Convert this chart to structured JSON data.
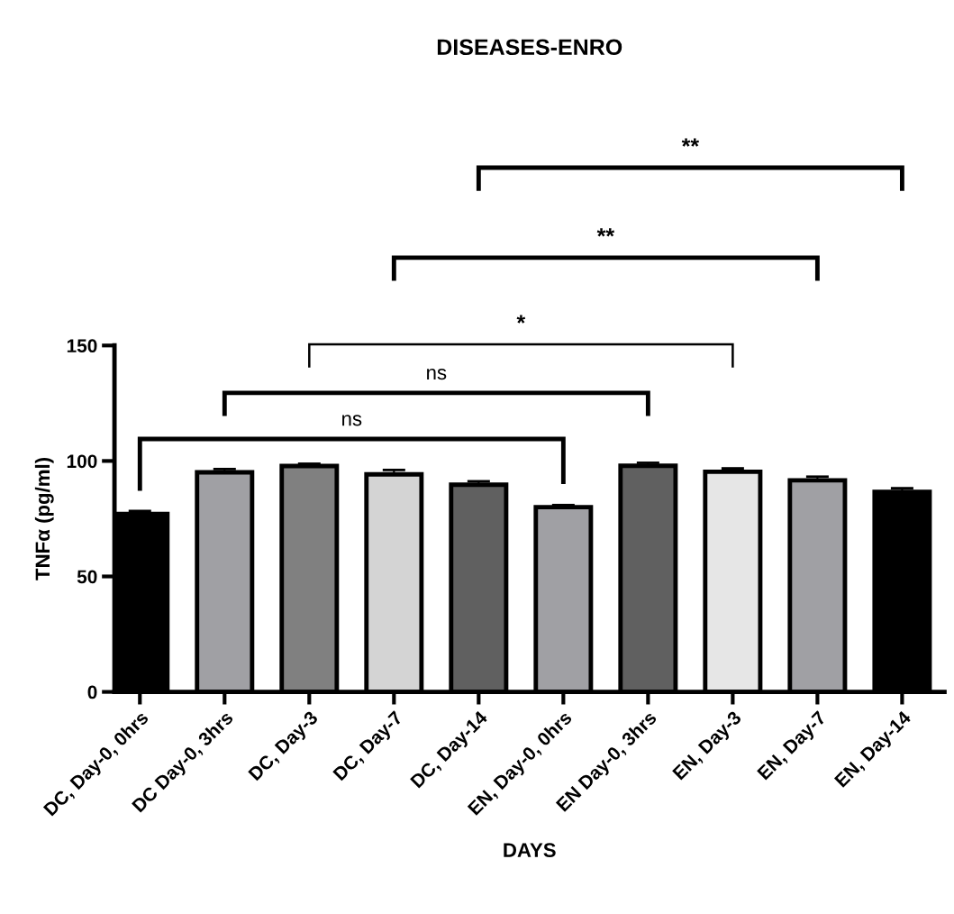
{
  "chart_data": {
    "type": "bar",
    "title": "DISEASES-ENRO",
    "xlabel": "DAYS",
    "ylabel": "TNFα (pg/ml)",
    "categories": [
      "DC, Day-0, 0hrs",
      "DC Day-0, 3hrs",
      "DC, Day-3",
      "DC, Day-7",
      "DC, Day-14",
      "EN, Day-0, 0hrs",
      "EN Day-0, 3hrs",
      "EN, Day-3",
      "EN, Day-7",
      "EN, Day-14"
    ],
    "values": [
      77.1,
      95.1,
      97.8,
      94.2,
      89.7,
      80.0,
      97.9,
      95.3,
      91.6,
      86.6
    ],
    "errors": [
      1.2,
      1.4,
      1.0,
      1.9,
      1.5,
      0.9,
      1.3,
      1.5,
      1.6,
      1.6
    ],
    "colors": [
      "#000000",
      "#a0a0a4",
      "#808080",
      "#d4d4d4",
      "#606060",
      "#a0a0a4",
      "#606060",
      "#e6e6e6",
      "#a0a0a4",
      "#000000"
    ],
    "ylim": [
      0,
      150
    ],
    "yticks": [
      0,
      50,
      100,
      150
    ],
    "grid": false,
    "legend": false,
    "annotations": [
      "ns",
      "ns",
      "*",
      "**",
      "**"
    ]
  }
}
